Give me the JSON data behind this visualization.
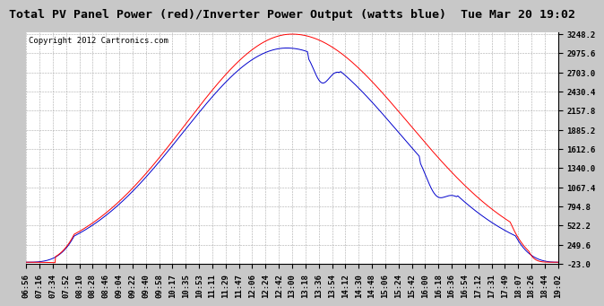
{
  "title": "Total PV Panel Power (red)/Inverter Power Output (watts blue)  Tue Mar 20 19:02",
  "copyright": "Copyright 2012 Cartronics.com",
  "ymin": -23.0,
  "ymax": 3248.2,
  "yticks": [
    3248.2,
    2975.6,
    2703.0,
    2430.4,
    2157.8,
    1885.2,
    1612.6,
    1340.0,
    1067.4,
    794.8,
    522.2,
    249.6,
    -23.0
  ],
  "xtick_labels": [
    "06:56",
    "07:16",
    "07:34",
    "07:52",
    "08:10",
    "08:28",
    "08:46",
    "09:04",
    "09:22",
    "09:40",
    "09:58",
    "10:17",
    "10:35",
    "10:53",
    "11:11",
    "11:29",
    "11:47",
    "12:06",
    "12:24",
    "12:42",
    "13:00",
    "13:18",
    "13:36",
    "13:54",
    "14:12",
    "14:30",
    "14:48",
    "15:06",
    "15:24",
    "15:42",
    "16:00",
    "16:18",
    "16:36",
    "16:54",
    "17:12",
    "17:31",
    "17:49",
    "18:07",
    "18:26",
    "18:44",
    "19:02"
  ],
  "bg_color": "#c8c8c8",
  "plot_bg": "#ffffff",
  "red_color": "#ff0000",
  "blue_color": "#0000cc",
  "grid_color": "#aaaaaa",
  "title_fontsize": 9.5,
  "copyright_fontsize": 6.5,
  "tick_fontsize": 6.5
}
